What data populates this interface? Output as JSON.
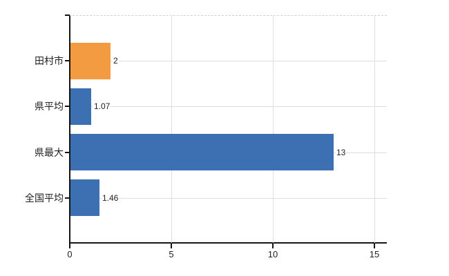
{
  "chart_data": {
    "type": "bar",
    "orientation": "horizontal",
    "title": "",
    "categories": [
      "田村市",
      "県平均",
      "県最大",
      "全国平均"
    ],
    "values": [
      2,
      1.07,
      13,
      1.46
    ],
    "value_labels": [
      "2",
      "1.07",
      "13",
      "1.46"
    ],
    "bar_colors": [
      "#f29b41",
      "#3d70b2",
      "#3d70b2",
      "#3d70b2"
    ],
    "highlight_index": 0,
    "x_tick_labels": [
      "0",
      "5",
      "10",
      "15"
    ],
    "x_tick_values": [
      0,
      5,
      10,
      15
    ],
    "xlim": [
      0,
      15.6
    ],
    "grid": true,
    "legend": "none",
    "colors": {
      "highlight": "#f29b41",
      "default": "#3d70b2",
      "grid": "#dcdfdc",
      "axis": "#141414",
      "text": "#222222",
      "background": "#ffffff"
    }
  }
}
